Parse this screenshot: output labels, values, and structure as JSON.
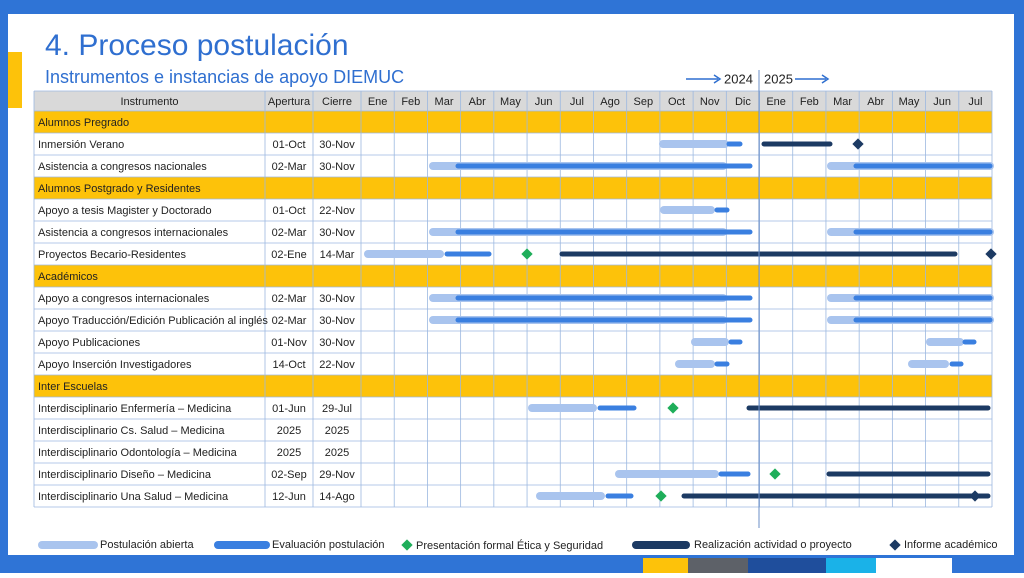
{
  "header": {
    "title": "4. Proceso postulación",
    "subtitle": "Instrumentos e instancias de apoyo DIEMUC"
  },
  "timeline": {
    "years": [
      "2024",
      "2025"
    ]
  },
  "table": {
    "columns": [
      "Instrumento",
      "Apertura",
      "Cierre"
    ],
    "months": [
      "Ene",
      "Feb",
      "Mar",
      "Abr",
      "May",
      "Jun",
      "Jul",
      "Ago",
      "Sep",
      "Oct",
      "Nov",
      "Dic",
      "Ene",
      "Feb",
      "Mar",
      "Abr",
      "May",
      "Jun",
      "Jul"
    ],
    "rows": [
      [
        "Alumnos Pregrado"
      ],
      [
        "Inmersión Verano",
        "01-Oct",
        "30-Nov"
      ],
      [
        "Asistencia a congresos nacionales",
        "02-Mar",
        "30-Nov"
      ],
      [
        "Alumnos Postgrado y Residentes"
      ],
      [
        "Apoyo a tesis Magister y Doctorado",
        "01-Oct",
        "22-Nov"
      ],
      [
        "Asistencia a congresos internacionales",
        "02-Mar",
        "30-Nov"
      ],
      [
        "Proyectos Becario-Residentes",
        "02-Ene",
        "14-Mar"
      ],
      [
        "Académicos"
      ],
      [
        "Apoyo a congresos internacionales",
        "02-Mar",
        "30-Nov"
      ],
      [
        "Apoyo Traducción/Edición Publicación al inglés",
        "02-Mar",
        "30-Nov"
      ],
      [
        "Apoyo Publicaciones",
        "01-Nov",
        "30-Nov"
      ],
      [
        "Apoyo Inserción Investigadores",
        "14-Oct",
        "22-Nov"
      ],
      [
        "Inter Escuelas"
      ],
      [
        "Interdisciplinario Enfermería – Medicina",
        "01-Jun",
        "29-Jul"
      ],
      [
        "Interdisciplinario Cs. Salud – Medicina",
        "2025",
        "2025"
      ],
      [
        "Interdisciplinario Odontología – Medicina",
        "2025",
        "2025"
      ],
      [
        "Interdisciplinario Diseño – Medicina",
        "02-Sep",
        "29-Nov"
      ],
      [
        "Interdisciplinario Una Salud – Medicina",
        "12-Jun",
        "14-Ago"
      ]
    ]
  },
  "legend": [
    "Postulación abierta",
    "Evaluación postulación",
    "Presentación formal Ética y Seguridad",
    "Realización actividad o proyecto",
    "Informe académico"
  ]
}
